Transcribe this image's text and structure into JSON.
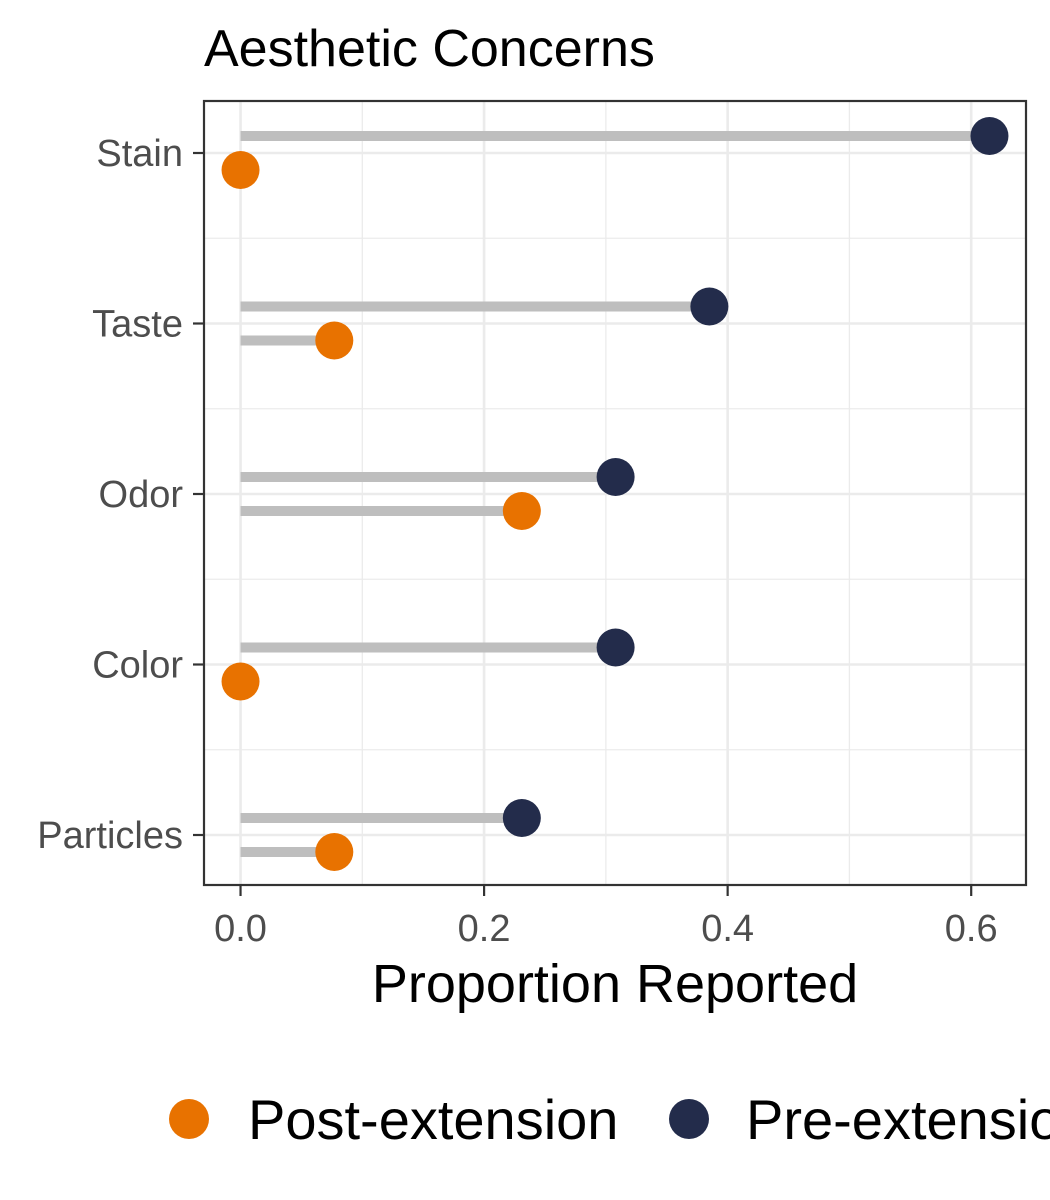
{
  "chart_data": {
    "type": "dot",
    "title": "Aesthetic Concerns",
    "xlabel": "Proportion Reported",
    "ylabel": "",
    "xlim": [
      -0.03,
      0.645
    ],
    "xticks": [
      "0.0",
      "0.2",
      "0.4",
      "0.6"
    ],
    "xtick_values": [
      0.0,
      0.2,
      0.4,
      0.6
    ],
    "categories": [
      "Stain",
      "Taste",
      "Odor",
      "Color",
      "Particles"
    ],
    "series": [
      {
        "name": "Pre-extension",
        "color": "#232c4b",
        "values": [
          0.615,
          0.385,
          0.308,
          0.308,
          0.231
        ]
      },
      {
        "name": "Post-extension",
        "color": "#e87200",
        "values": [
          0.0,
          0.077,
          0.231,
          0.0,
          0.077
        ]
      }
    ],
    "stem_color": "#bebebe",
    "grid": true,
    "legend_position": "bottom"
  }
}
